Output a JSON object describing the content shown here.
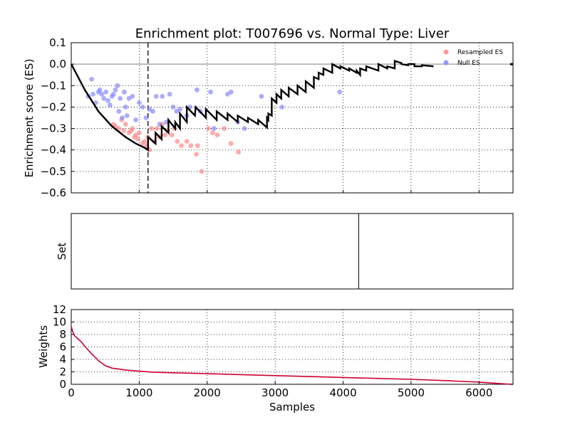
{
  "chart_data": [
    {
      "panel": "enrichment",
      "type": "line+scatter",
      "title": "Enrichment plot: T007696 vs. Normal Type: Liver",
      "ylabel": "Enrichment score (ES)",
      "xlim": [
        0,
        6500
      ],
      "ylim": [
        -0.6,
        0.1
      ],
      "yticks": [
        "0.1",
        "0.0",
        "−0.1",
        "−0.2",
        "−0.3",
        "−0.4",
        "−0.5",
        "−0.6"
      ],
      "ytick_values": [
        0.1,
        0.0,
        -0.1,
        -0.2,
        -0.3,
        -0.4,
        -0.5,
        -0.6
      ],
      "xgrid": [
        1000,
        2000,
        3000,
        4000,
        5000,
        6000
      ],
      "grid": true,
      "legend": {
        "placement": "top-right",
        "entries": [
          "Resampled ES",
          "Null ES"
        ]
      },
      "colors": {
        "resampled": "#ff8080",
        "null": "#8080ff",
        "es_line": "#000000",
        "reference": "#808080"
      },
      "max_deviation_x": 1130,
      "es_curve": {
        "x": [
          0,
          200,
          400,
          600,
          800,
          950,
          1080,
          1130,
          1130,
          1240,
          1240,
          1330,
          1330,
          1430,
          1430,
          1530,
          1530,
          1600,
          1600,
          1700,
          1700,
          1820,
          1830,
          1980,
          1980,
          2140,
          2140,
          2300,
          2300,
          2450,
          2450,
          2600,
          2600,
          2750,
          2750,
          2880,
          2880,
          2900,
          2900,
          2950,
          2950,
          3020,
          3020,
          3090,
          3090,
          3200,
          3200,
          3330,
          3330,
          3450,
          3450,
          3570,
          3570,
          3640,
          3640,
          3710,
          3710,
          3840,
          3840,
          3960,
          3960,
          4090,
          4090,
          4200,
          4200,
          4250,
          4250,
          4340,
          4340,
          4430,
          4430,
          4520,
          4520,
          4650,
          4650,
          4760,
          4760,
          4860,
          4860,
          4960,
          4960,
          5050,
          5050,
          5160,
          5160,
          5330
        ],
        "y": [
          0.0,
          -0.12,
          -0.22,
          -0.29,
          -0.34,
          -0.37,
          -0.39,
          -0.4,
          -0.34,
          -0.37,
          -0.32,
          -0.35,
          -0.29,
          -0.32,
          -0.26,
          -0.3,
          -0.27,
          -0.3,
          -0.23,
          -0.27,
          -0.2,
          -0.24,
          -0.2,
          -0.25,
          -0.21,
          -0.26,
          -0.22,
          -0.26,
          -0.23,
          -0.27,
          -0.24,
          -0.27,
          -0.25,
          -0.28,
          -0.26,
          -0.295,
          -0.25,
          -0.26,
          -0.23,
          -0.24,
          -0.16,
          -0.18,
          -0.14,
          -0.16,
          -0.12,
          -0.15,
          -0.11,
          -0.14,
          -0.1,
          -0.13,
          -0.08,
          -0.11,
          -0.06,
          -0.07,
          -0.04,
          -0.05,
          -0.02,
          -0.04,
          0.0,
          -0.02,
          -0.01,
          -0.03,
          -0.02,
          -0.04,
          -0.03,
          -0.05,
          -0.02,
          -0.03,
          -0.01,
          -0.02,
          -0.02,
          -0.03,
          0.0,
          -0.02,
          -0.01,
          -0.02,
          0.015,
          0.005,
          0.0,
          -0.005,
          0.0,
          0.0,
          -0.01,
          -0.01,
          -0.005,
          -0.01
        ]
      },
      "resampled_es": {
        "x": [
          620,
          650,
          700,
          740,
          770,
          800,
          850,
          880,
          900,
          930,
          950,
          980,
          1000,
          1050,
          1080,
          1110,
          1130,
          1150,
          1180,
          1220,
          1260,
          1300,
          1340,
          1380,
          1420,
          1480,
          1520,
          1560,
          1620,
          1700,
          1760,
          1840,
          1860,
          1920,
          2020,
          2080,
          2150,
          2250,
          2350,
          2460
        ],
        "y": [
          -0.28,
          -0.29,
          -0.3,
          -0.26,
          -0.31,
          -0.28,
          -0.32,
          -0.31,
          -0.3,
          -0.34,
          -0.33,
          -0.35,
          -0.32,
          -0.37,
          -0.36,
          -0.38,
          -0.34,
          -0.4,
          -0.3,
          -0.36,
          -0.3,
          -0.34,
          -0.28,
          -0.33,
          -0.31,
          -0.33,
          -0.3,
          -0.36,
          -0.38,
          -0.36,
          -0.38,
          -0.42,
          -0.38,
          -0.5,
          -0.3,
          -0.32,
          -0.33,
          -0.3,
          -0.37,
          -0.41
        ]
      },
      "null_es": {
        "x": [
          250,
          300,
          320,
          360,
          400,
          420,
          450,
          480,
          510,
          540,
          570,
          600,
          620,
          650,
          680,
          700,
          720,
          750,
          780,
          800,
          820,
          850,
          900,
          950,
          1000,
          1050,
          1100,
          1150,
          1200,
          1250,
          1300,
          1340,
          1400,
          1450,
          1500,
          1550,
          1600,
          1700,
          1750,
          1850,
          1900,
          2050,
          2100,
          2300,
          2350,
          2450,
          2550,
          2800,
          3100,
          3950
        ],
        "y": [
          -0.15,
          -0.07,
          -0.14,
          -0.18,
          -0.13,
          -0.12,
          -0.14,
          -0.16,
          -0.13,
          -0.17,
          -0.19,
          -0.15,
          -0.14,
          -0.12,
          -0.1,
          -0.22,
          -0.16,
          -0.25,
          -0.13,
          -0.2,
          -0.24,
          -0.16,
          -0.15,
          -0.26,
          -0.18,
          -0.2,
          -0.25,
          -0.21,
          -0.22,
          -0.15,
          -0.28,
          -0.15,
          -0.27,
          -0.14,
          -0.2,
          -0.22,
          -0.21,
          -0.24,
          -0.2,
          -0.12,
          -0.22,
          -0.13,
          -0.3,
          -0.14,
          -0.13,
          -0.27,
          -0.3,
          -0.15,
          -0.2,
          -0.13
        ]
      }
    },
    {
      "panel": "set",
      "type": "rug",
      "ylabel": "Set",
      "hits_x": [
        4230
      ]
    },
    {
      "panel": "weights",
      "type": "line",
      "ylabel": "Weights",
      "xlabel": "Samples",
      "xlim": [
        0,
        6500
      ],
      "ylim": [
        0,
        12
      ],
      "yticks": [
        "12",
        "10",
        "8",
        "6",
        "4",
        "2",
        "0"
      ],
      "ytick_values": [
        12,
        10,
        8,
        6,
        4,
        2,
        0
      ],
      "xticks": [
        "0",
        "1000",
        "2000",
        "3000",
        "4000",
        "5000",
        "6000"
      ],
      "xtick_values": [
        0,
        1000,
        2000,
        3000,
        4000,
        5000,
        6000
      ],
      "grid": true,
      "colors": {
        "line": "#cc0033"
      },
      "x": [
        0,
        20,
        50,
        100,
        150,
        200,
        300,
        400,
        500,
        600,
        700,
        800,
        1000,
        1200,
        1500,
        2000,
        2500,
        3000,
        3500,
        4000,
        4500,
        5000,
        5500,
        6000,
        6200,
        6400,
        6500
      ],
      "y": [
        9.3,
        8.5,
        7.8,
        7.3,
        6.8,
        6.1,
        4.9,
        3.8,
        3.0,
        2.6,
        2.45,
        2.3,
        2.1,
        1.95,
        1.85,
        1.7,
        1.55,
        1.4,
        1.25,
        1.1,
        0.95,
        0.8,
        0.6,
        0.35,
        0.2,
        0.05,
        0.0
      ]
    }
  ]
}
